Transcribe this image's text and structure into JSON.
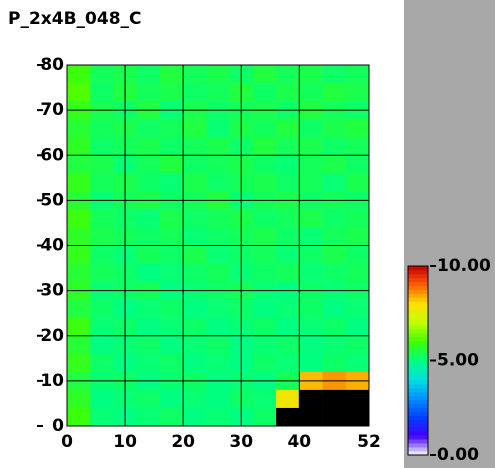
{
  "chart_data": {
    "type": "heatmap",
    "title": "P_2x4B_048_C",
    "xlim": [
      0,
      52
    ],
    "ylim": [
      0,
      80
    ],
    "xticks": [
      0,
      10,
      20,
      30,
      40,
      52
    ],
    "yticks": [
      0,
      10,
      20,
      30,
      40,
      50,
      60,
      70,
      80
    ],
    "grid": true,
    "missing_color": "#000000",
    "clim": [
      0,
      10
    ],
    "cticks": [
      {
        "value": 0,
        "label": "0.00"
      },
      {
        "value": 5,
        "label": "5.00"
      },
      {
        "value": 10,
        "label": "10.00"
      }
    ],
    "colorscale": [
      "#ffffff",
      "#4000ff",
      "#0040ff",
      "#0090ff",
      "#00e0e0",
      "#00ff80",
      "#40ff00",
      "#c0ff00",
      "#ffe000",
      "#ff6000",
      "#c00000"
    ],
    "values": [
      [
        5.9,
        5.3,
        5.4,
        5.2,
        5.5,
        5.3,
        5.4,
        5.2,
        5.5,
        5.3,
        5.4,
        5.2,
        5.3
      ],
      [
        6.1,
        5.2,
        5.5,
        5.3,
        5.4,
        5.2,
        5.3,
        5.5,
        5.2,
        5.4,
        5.3,
        5.5,
        5.4
      ],
      [
        5.8,
        5.4,
        5.2,
        5.5,
        5.1,
        5.4,
        5.2,
        5.3,
        5.4,
        5.2,
        5.5,
        5.3,
        5.2
      ],
      [
        5.6,
        5.3,
        5.4,
        5.2,
        5.3,
        5.5,
        5.1,
        5.4,
        5.3,
        5.5,
        5.2,
        5.4,
        5.5
      ],
      [
        5.7,
        5.2,
        5.3,
        5.4,
        5.2,
        5.3,
        5.4,
        5.2,
        5.5,
        5.3,
        5.4,
        5.2,
        5.3
      ],
      [
        5.5,
        5.4,
        5.1,
        5.3,
        5.5,
        5.2,
        5.3,
        5.4,
        5.2,
        5.1,
        5.3,
        5.4,
        5.2
      ],
      [
        5.8,
        5.3,
        5.4,
        5.2,
        5.1,
        5.4,
        5.2,
        5.3,
        5.4,
        5.2,
        5.3,
        5.1,
        5.4
      ],
      [
        5.6,
        5.1,
        5.3,
        5.4,
        5.2,
        5.3,
        5.5,
        5.1,
        5.3,
        5.4,
        5.2,
        5.3,
        5.2
      ],
      [
        5.9,
        5.3,
        5.2,
        5.1,
        5.4,
        5.2,
        5.3,
        5.4,
        5.2,
        5.3,
        5.4,
        5.2,
        5.3
      ],
      [
        5.7,
        5.4,
        5.3,
        5.2,
        5.3,
        5.1,
        5.2,
        5.3,
        5.4,
        5.2,
        5.1,
        5.3,
        5.4
      ],
      [
        5.8,
        5.2,
        5.1,
        5.3,
        5.2,
        5.4,
        5.1,
        5.2,
        5.3,
        5.1,
        5.2,
        5.4,
        5.2
      ],
      [
        5.6,
        5.3,
        5.2,
        5.0,
        5.1,
        5.2,
        5.3,
        5.1,
        5.2,
        5.3,
        5.1,
        5.2,
        5.3
      ],
      [
        5.7,
        5.1,
        5.2,
        5.3,
        5.0,
        5.1,
        5.2,
        5.3,
        5.1,
        5.0,
        5.2,
        5.1,
        5.2
      ],
      [
        5.5,
        5.2,
        5.0,
        5.1,
        5.2,
        5.0,
        5.1,
        5.2,
        5.0,
        5.1,
        5.2,
        5.0,
        5.1
      ],
      [
        5.9,
        5.1,
        5.2,
        5.0,
        5.1,
        5.2,
        5.0,
        5.1,
        5.2,
        5.0,
        5.1,
        5.2,
        5.0
      ],
      [
        5.6,
        5.0,
        5.1,
        5.2,
        5.0,
        5.1,
        5.2,
        5.0,
        5.1,
        5.2,
        5.0,
        5.1,
        5.2
      ],
      [
        5.8,
        5.2,
        5.0,
        5.1,
        5.2,
        5.0,
        5.1,
        5.0,
        5.2,
        5.1,
        5.0,
        5.2,
        5.1
      ],
      [
        5.5,
        5.1,
        5.2,
        5.0,
        5.1,
        5.2,
        5.0,
        5.1,
        5.0,
        5.3,
        8.3,
        8.6,
        8.4
      ],
      [
        5.7,
        5.0,
        5.1,
        5.2,
        5.0,
        5.1,
        5.0,
        5.2,
        5.1,
        7.8,
        null,
        null,
        null
      ],
      [
        5.9,
        5.1,
        5.0,
        5.1,
        5.2,
        5.0,
        5.1,
        5.0,
        5.2,
        null,
        null,
        null,
        null
      ]
    ]
  }
}
